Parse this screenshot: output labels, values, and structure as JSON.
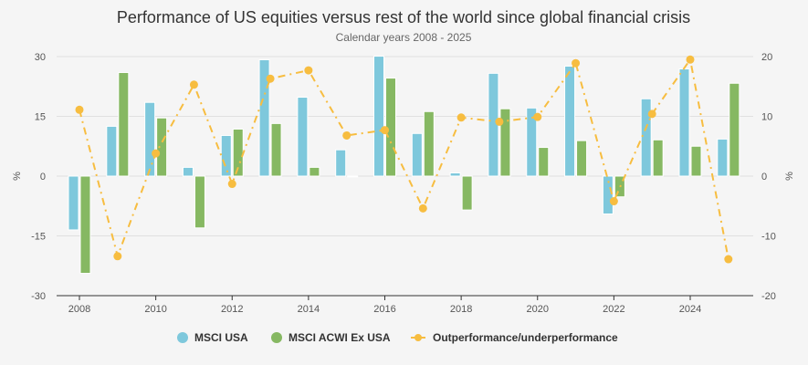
{
  "chart_data": {
    "type": "bar",
    "title": "Performance of US equities versus rest of the world since global financial crisis",
    "subtitle": "Calendar years 2008 - 2025",
    "ylabel_left": "%",
    "ylabel_right": "%",
    "ylim_left": [
      -30,
      30
    ],
    "ylim_right": [
      -20,
      20
    ],
    "yticks_left": [
      "-30",
      "-15",
      "0",
      "15",
      "30"
    ],
    "yticks_right": [
      "-20",
      "-10",
      "0",
      "10",
      "20"
    ],
    "xticks": [
      "2008",
      "2010",
      "2012",
      "2014",
      "2016",
      "2018",
      "2020",
      "2022",
      "2024"
    ],
    "grid": true,
    "legend_placement": "bottom",
    "categories": [
      2008,
      2009,
      2010,
      2011,
      2012,
      2013,
      2014,
      2015,
      2016,
      2017,
      2018,
      2019,
      2020,
      2021,
      2022,
      2023,
      2024,
      2025
    ],
    "series": [
      {
        "name": "MSCI USA",
        "type": "bar",
        "axis": "left",
        "color": "#7ec8dc",
        "values": [
          -13.5,
          12.5,
          18.5,
          2.2,
          10.2,
          29.2,
          19.8,
          6.6,
          30.1,
          10.7,
          0.8,
          25.8,
          17.1,
          27.6,
          -9.5,
          19.4,
          26.9,
          9.3
        ]
      },
      {
        "name": "MSCI ACWI Ex USA",
        "type": "bar",
        "axis": "left",
        "color": "#86b862",
        "values": [
          -24.4,
          26.0,
          14.6,
          -13.0,
          11.8,
          13.2,
          2.2,
          -0.2,
          24.6,
          16.2,
          -8.5,
          16.9,
          7.2,
          8.9,
          -5.2,
          9.1,
          7.5,
          23.3
        ]
      },
      {
        "name": "Outperformance/underperformance",
        "type": "line",
        "axis": "right",
        "color": "#f7bd40",
        "values": [
          11.1,
          -13.4,
          3.8,
          15.3,
          -1.3,
          16.3,
          17.7,
          6.8,
          7.7,
          -5.4,
          9.8,
          9.1,
          9.9,
          18.9,
          -4.2,
          10.4,
          19.5,
          -13.9
        ]
      }
    ]
  }
}
